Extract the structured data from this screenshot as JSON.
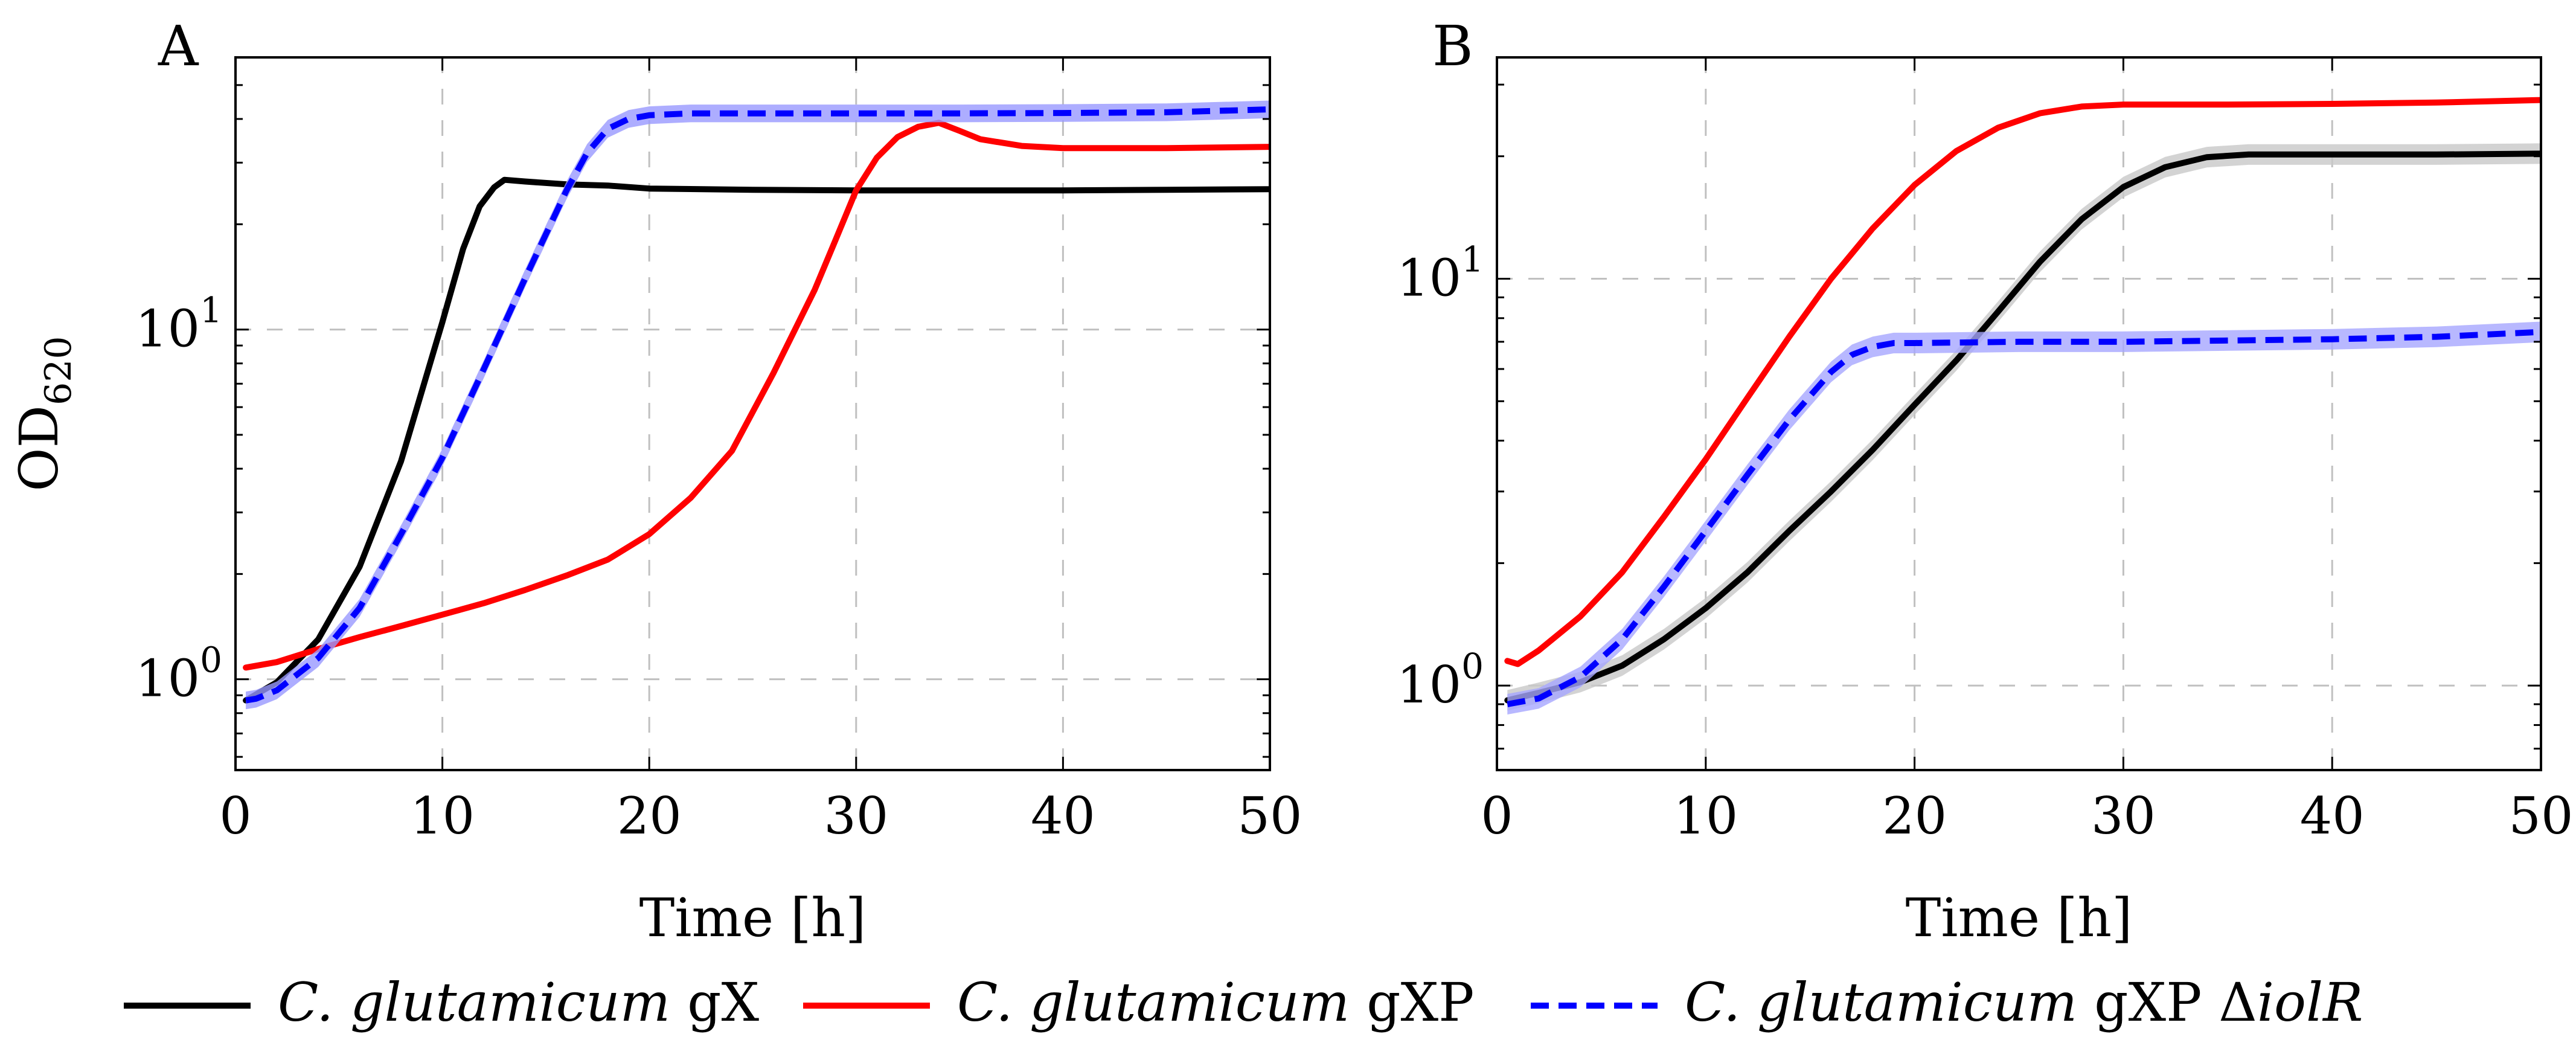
{
  "chart_data": [
    {
      "type": "line",
      "panel": "A",
      "xlabel": "Time [h]",
      "ylabel": "OD620",
      "ylabel_main": "OD",
      "ylabel_sub": "620",
      "xlim": [
        0,
        50
      ],
      "ylim": [
        0.55,
        60
      ],
      "yscale": "log",
      "xticks": [
        0,
        10,
        20,
        30,
        40,
        50
      ],
      "xtick_labels": [
        "0",
        "10",
        "20",
        "30",
        "40",
        "50"
      ],
      "yticks": [
        1,
        10
      ],
      "ytick_labels": [
        {
          "base": "10",
          "exp": "0"
        },
        {
          "base": "10",
          "exp": "1"
        }
      ],
      "grid": true,
      "series": [
        {
          "key": "gX",
          "color": "#000000",
          "dash": "none",
          "band": false,
          "x": [
            0.5,
            2,
            4,
            6,
            8,
            10,
            11,
            11.8,
            12.5,
            13,
            14,
            16,
            18,
            20,
            25,
            30,
            35,
            40,
            45,
            50
          ],
          "y": [
            0.87,
            0.98,
            1.3,
            2.1,
            4.2,
            10.5,
            17,
            22.5,
            25.5,
            26.8,
            26.5,
            26,
            25.8,
            25.3,
            25.1,
            25,
            25,
            25,
            25.1,
            25.2
          ]
        },
        {
          "key": "gXP",
          "color": "#ff0000",
          "dash": "none",
          "band": false,
          "x": [
            0.5,
            2,
            4,
            6,
            8,
            10,
            12,
            14,
            16,
            18,
            20,
            22,
            24,
            26,
            28,
            29,
            30,
            31,
            32,
            33,
            34,
            35,
            36,
            38,
            40,
            45,
            50
          ],
          "y": [
            1.08,
            1.12,
            1.22,
            1.32,
            1.42,
            1.53,
            1.65,
            1.8,
            1.98,
            2.2,
            2.6,
            3.3,
            4.5,
            7.5,
            13,
            18,
            25,
            31,
            35.5,
            38,
            39,
            37,
            35,
            33.5,
            33,
            33,
            33.3
          ]
        },
        {
          "key": "gXP_iolR",
          "color": "#0000ff",
          "dash": "dashed",
          "band": true,
          "band_color": "#9999ff",
          "x": [
            0.5,
            1,
            2,
            4,
            6,
            8,
            10,
            12,
            14,
            16,
            17,
            18,
            19,
            20,
            22,
            25,
            30,
            35,
            40,
            45,
            50
          ],
          "y": [
            0.87,
            0.88,
            0.93,
            1.15,
            1.6,
            2.6,
            4.3,
            7.7,
            14,
            25,
            32,
            37.5,
            40,
            41,
            41.5,
            41.5,
            41.5,
            41.5,
            41.6,
            41.8,
            42.6
          ]
        }
      ]
    },
    {
      "type": "line",
      "panel": "B",
      "xlabel": "Time [h]",
      "ylabel": "",
      "xlim": [
        0,
        50
      ],
      "ylim": [
        0.62,
        35
      ],
      "yscale": "log",
      "xticks": [
        0,
        10,
        20,
        30,
        40,
        50
      ],
      "xtick_labels": [
        "0",
        "10",
        "20",
        "30",
        "40",
        "50"
      ],
      "yticks": [
        1,
        10
      ],
      "ytick_labels": [
        {
          "base": "10",
          "exp": "0"
        },
        {
          "base": "10",
          "exp": "1"
        }
      ],
      "grid": true,
      "series": [
        {
          "key": "gX",
          "color": "#000000",
          "dash": "none",
          "band": true,
          "band_color": "#c8c8c8",
          "x": [
            0.5,
            2,
            4,
            6,
            8,
            10,
            12,
            14,
            16,
            18,
            20,
            22,
            24,
            26,
            28,
            30,
            32,
            34,
            36,
            40,
            45,
            50
          ],
          "y": [
            0.92,
            0.96,
            1.02,
            1.12,
            1.3,
            1.55,
            1.9,
            2.4,
            3.0,
            3.8,
            4.9,
            6.3,
            8.3,
            11,
            14,
            16.8,
            18.8,
            19.9,
            20.2,
            20.2,
            20.2,
            20.3
          ]
        },
        {
          "key": "gXP",
          "color": "#ff0000",
          "dash": "none",
          "band": false,
          "x": [
            0.5,
            1,
            2,
            4,
            6,
            8,
            10,
            12,
            14,
            16,
            18,
            20,
            22,
            24,
            26,
            28,
            30,
            35,
            40,
            45,
            50
          ],
          "y": [
            1.15,
            1.13,
            1.22,
            1.48,
            1.9,
            2.6,
            3.6,
            5.1,
            7.2,
            10,
            13.3,
            17,
            20.6,
            23.5,
            25.5,
            26.5,
            26.8,
            26.8,
            26.9,
            27.1,
            27.5
          ]
        },
        {
          "key": "gXP_iolR",
          "color": "#0000ff",
          "dash": "dashed",
          "band": true,
          "band_color": "#a6a6ff",
          "x": [
            0.5,
            2,
            4,
            6,
            8,
            10,
            12,
            14,
            16,
            17,
            18,
            19,
            20,
            25,
            30,
            35,
            40,
            45,
            50
          ],
          "y": [
            0.9,
            0.93,
            1.05,
            1.3,
            1.75,
            2.4,
            3.3,
            4.5,
            5.9,
            6.5,
            6.8,
            6.95,
            6.95,
            7.0,
            7.0,
            7.05,
            7.1,
            7.2,
            7.4
          ]
        }
      ]
    }
  ],
  "legend": {
    "placement": "bottom",
    "entries": [
      {
        "key": "gX",
        "species": "C. glutamicum",
        "strain": "gX",
        "strain_suffix": "",
        "color": "#000000",
        "dash": "none"
      },
      {
        "key": "gXP",
        "species": "C. glutamicum",
        "strain": "gXP",
        "strain_suffix": "",
        "color": "#ff0000",
        "dash": "none"
      },
      {
        "key": "gXP_iolR",
        "species": "C. glutamicum",
        "strain": "gXP Δ",
        "strain_suffix": "iolR",
        "color": "#0000ff",
        "dash": "dashed"
      }
    ]
  }
}
